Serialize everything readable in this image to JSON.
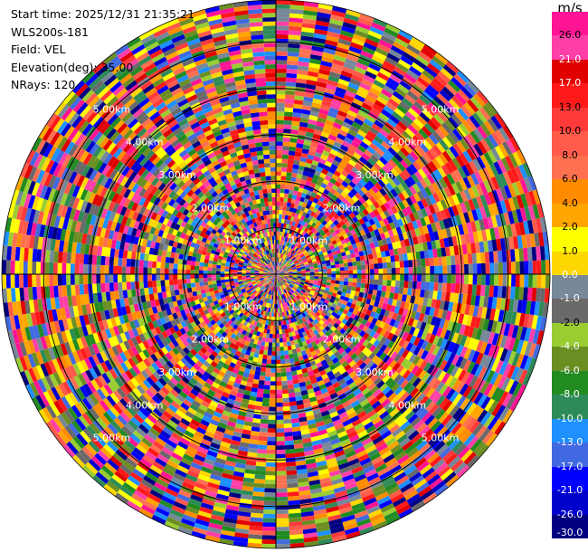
{
  "info": {
    "start_time": "Start time: 2025/12/31 21:35:21",
    "instrument": "WLS200s-181",
    "field": "Field: VEL",
    "elevation": "Elevation(deg): 35.00",
    "nrays": "NRays: 120"
  },
  "chart_data": {
    "type": "heatmap",
    "projection": "polar-ppi",
    "field": "VEL",
    "units": "m/s",
    "n_rays": 120,
    "elevation_deg": 35.0,
    "range_rings_km": [
      1.0,
      2.0,
      3.0,
      4.0,
      5.0
    ],
    "range_ring_labels": [
      "1.00km",
      "2.00km",
      "3.00km",
      "4.00km",
      "5.00km"
    ],
    "max_range_km": 5.9,
    "colorbar": {
      "unit_label": "m/s",
      "min": -30.0,
      "max": 30.0,
      "tick_labels": [
        "26.0",
        "21.0",
        "17.0",
        "13.0",
        "10.0",
        "8.0",
        "6.0",
        "4.0",
        "2.0",
        "1.0",
        "0.0",
        "-1.0",
        "-2.0",
        "-4.0",
        "-6.0",
        "-8.0",
        "-10.0",
        "-13.0",
        "-17.0",
        "-21.0",
        "-26.0",
        "-30.0"
      ],
      "bins": [
        {
          "lo": 26,
          "hi": 30,
          "color": "#ff1493"
        },
        {
          "lo": 21,
          "hi": 26,
          "color": "#ff3fa8"
        },
        {
          "lo": 17,
          "hi": 21,
          "color": "#e00000"
        },
        {
          "lo": 13,
          "hi": 17,
          "color": "#ff1a1a"
        },
        {
          "lo": 10,
          "hi": 13,
          "color": "#ff3a3a"
        },
        {
          "lo": 8,
          "hi": 10,
          "color": "#ff5a4a"
        },
        {
          "lo": 6,
          "hi": 8,
          "color": "#ff7050"
        },
        {
          "lo": 4,
          "hi": 6,
          "color": "#ff8c00"
        },
        {
          "lo": 2,
          "hi": 4,
          "color": "#ffa500"
        },
        {
          "lo": 1,
          "hi": 2,
          "color": "#ffff00"
        },
        {
          "lo": 0,
          "hi": 1,
          "color": "#ffd700"
        },
        {
          "lo": -1,
          "hi": 0,
          "color": "#778899"
        },
        {
          "lo": -2,
          "hi": -1,
          "color": "#696969"
        },
        {
          "lo": -4,
          "hi": -2,
          "color": "#9acd32"
        },
        {
          "lo": -6,
          "hi": -4,
          "color": "#6b8e23"
        },
        {
          "lo": -8,
          "hi": -6,
          "color": "#228b22"
        },
        {
          "lo": -10,
          "hi": -8,
          "color": "#2e8b57"
        },
        {
          "lo": -13,
          "hi": -10,
          "color": "#1e90ff"
        },
        {
          "lo": -17,
          "hi": -13,
          "color": "#4169e1"
        },
        {
          "lo": -21,
          "hi": -17,
          "color": "#0000ff"
        },
        {
          "lo": -26,
          "hi": -21,
          "color": "#0000cd"
        },
        {
          "lo": -30,
          "hi": -26,
          "color": "#000080"
        }
      ]
    }
  }
}
